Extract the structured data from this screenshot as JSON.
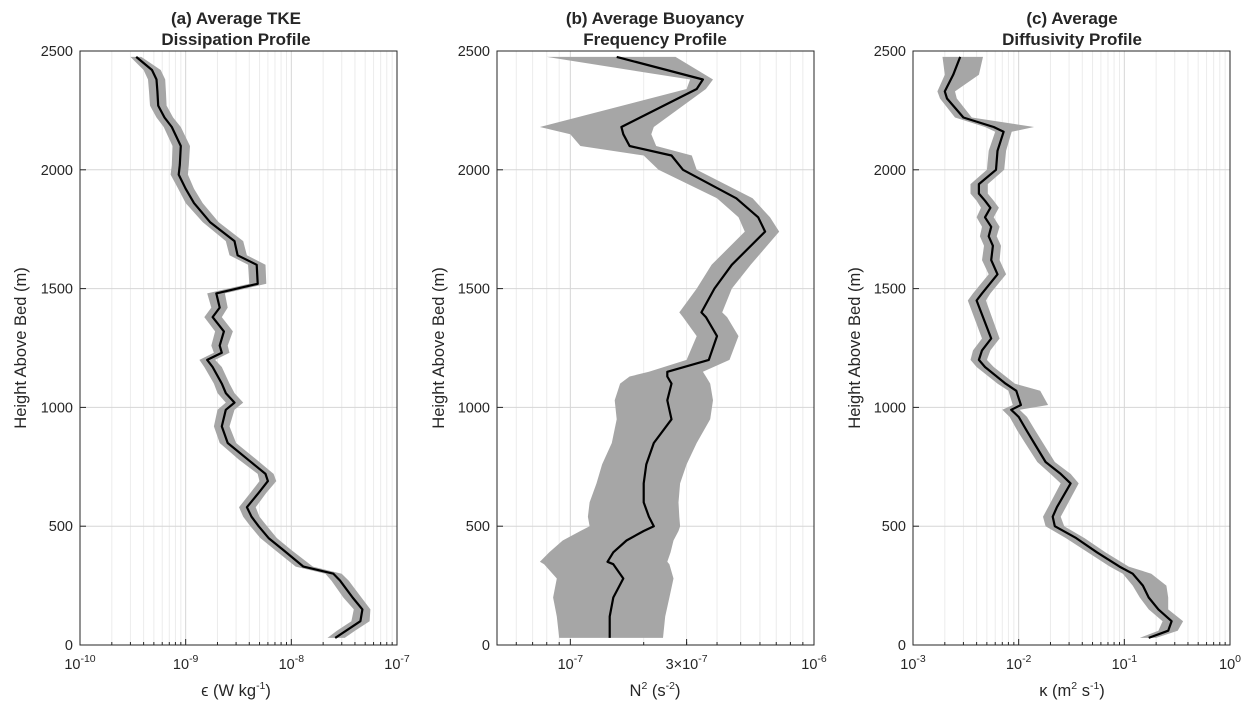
{
  "chart_data": [
    {
      "type": "line",
      "title_lines": [
        "(a) Average TKE",
        "Dissipation Profile"
      ],
      "xlabel": "ϵ (W kg⁻¹)",
      "ylabel": "Height Above Bed (m)",
      "xscale": "log",
      "xlim": [
        1e-10,
        1e-07
      ],
      "ylim": [
        0,
        2500
      ],
      "yticks": [
        0,
        500,
        1000,
        1500,
        2000,
        2500
      ],
      "xtick_labels": [
        {
          "value": 1e-10,
          "base": "10",
          "exp": "-10"
        },
        {
          "value": 1e-09,
          "base": "10",
          "exp": "-9"
        },
        {
          "value": 1e-08,
          "base": "10",
          "exp": "-8"
        },
        {
          "value": 1e-07,
          "base": "10",
          "exp": "-7"
        }
      ],
      "grid": true,
      "line_color": "#000000",
      "band_color": "#a6a6a6",
      "series": [
        {
          "x": [
            2.6e-08,
            3.3e-08,
            4.5e-08,
            4.7e-08,
            3.8e-08,
            2.9e-08,
            2.5e-08,
            1.3e-08,
            8.4e-09,
            6.1e-09,
            4.9e-09,
            4.2e-09,
            3.8e-09,
            4.9e-09,
            6e-09,
            5.7e-09,
            3.9e-09,
            2.5e-09,
            2.2e-09,
            2.4e-09,
            2.9e-09,
            2.4e-09,
            2.2e-09,
            1.8e-09,
            1.6e-09,
            2.2e-09,
            2.1e-09,
            2.3e-09,
            1.8e-09,
            2.1e-09,
            1.95e-09,
            4.8e-09,
            4.7e-09,
            3.1e-09,
            2.9e-09,
            1.7e-09,
            1.2e-09,
            1e-09,
            8.6e-10,
            8.8e-10,
            9e-10,
            7.4e-10,
            6.3e-10,
            5.5e-10,
            5.4e-10,
            5.3e-10,
            4.8e-10,
            3.4e-10
          ],
          "y": [
            30,
            60,
            100,
            150,
            200,
            270,
            300,
            330,
            400,
            450,
            500,
            540,
            580,
            640,
            690,
            720,
            780,
            850,
            920,
            990,
            1020,
            1060,
            1100,
            1170,
            1200,
            1230,
            1260,
            1320,
            1380,
            1420,
            1480,
            1520,
            1600,
            1640,
            1700,
            1780,
            1860,
            1920,
            1980,
            2020,
            2100,
            2180,
            2220,
            2270,
            2330,
            2380,
            2420,
            2475
          ],
          "lower": [
            2.2e-08,
            2.7e-08,
            3.7e-08,
            3.9e-08,
            3.1e-08,
            2.4e-08,
            2.1e-08,
            1.1e-08,
            7e-09,
            5.1e-09,
            4.1e-09,
            3.5e-09,
            3.2e-09,
            4.1e-09,
            5e-09,
            4.8e-09,
            3.2e-09,
            2.1e-09,
            1.85e-09,
            2e-09,
            2.4e-09,
            2e-09,
            1.85e-09,
            1.5e-09,
            1.35e-09,
            1.85e-09,
            1.75e-09,
            1.9e-09,
            1.5e-09,
            1.75e-09,
            1.6e-09,
            4e-09,
            3.9e-09,
            2.6e-09,
            2.4e-09,
            1.45e-09,
            1e-09,
            8.5e-10,
            7.2e-10,
            7.4e-10,
            7.5e-10,
            6.2e-10,
            5.3e-10,
            4.6e-10,
            4.5e-10,
            4.4e-10,
            4e-10,
            3e-10
          ],
          "upper": [
            3.2e-08,
            4e-08,
            5.5e-08,
            5.6e-08,
            4.6e-08,
            3.5e-08,
            3e-08,
            1.6e-08,
            1e-08,
            7.3e-09,
            5.9e-09,
            5e-09,
            4.6e-09,
            5.8e-09,
            7.2e-09,
            6.8e-09,
            4.7e-09,
            3e-09,
            2.6e-09,
            2.9e-09,
            3.5e-09,
            2.9e-09,
            2.6e-09,
            2.2e-09,
            1.9e-09,
            2.6e-09,
            2.5e-09,
            2.8e-09,
            2.2e-09,
            2.5e-09,
            2.35e-09,
            5.8e-09,
            5.7e-09,
            3.8e-09,
            3.5e-09,
            2.05e-09,
            1.45e-09,
            1.2e-09,
            1.05e-09,
            1.07e-09,
            1.1e-09,
            9e-10,
            7.6e-10,
            6.6e-10,
            6.5e-10,
            6.4e-10,
            5.8e-10,
            3.8e-10
          ]
        }
      ]
    },
    {
      "type": "line",
      "title_lines": [
        "(b) Average Buoyancy",
        "Frequency Profile"
      ],
      "xlabel": "N² (s⁻²)",
      "ylabel": "Height Above Bed (m)",
      "xscale": "log",
      "xlim": [
        5e-08,
        1e-06
      ],
      "ylim": [
        0,
        2500
      ],
      "yticks": [
        0,
        500,
        1000,
        1500,
        2000,
        2500
      ],
      "xtick_labels": [
        {
          "value": 1e-07,
          "base": "10",
          "exp": "-7"
        },
        {
          "value": 3e-07,
          "base": "3×10",
          "exp": "-7"
        },
        {
          "value": 1e-06,
          "base": "10",
          "exp": "-6"
        }
      ],
      "grid": true,
      "line_color": "#000000",
      "band_color": "#a6a6a6",
      "series": [
        {
          "x": [
            1.45e-07,
            1.45e-07,
            1.5e-07,
            1.65e-07,
            1.5e-07,
            1.42e-07,
            1.5e-07,
            1.7e-07,
            2e-07,
            2.2e-07,
            2.1e-07,
            2e-07,
            2e-07,
            2.05e-07,
            2.2e-07,
            2.6e-07,
            2.5e-07,
            2.6e-07,
            2.5e-07,
            2.5e-07,
            3.7e-07,
            4e-07,
            3.6e-07,
            3.45e-07,
            3.9e-07,
            4.6e-07,
            6.3e-07,
            5.9e-07,
            4.8e-07,
            2.9e-07,
            2.6e-07,
            1.75e-07,
            1.65e-07,
            1.62e-07,
            3.3e-07,
            3.5e-07,
            1.55e-07
          ],
          "y": [
            30,
            120,
            200,
            280,
            340,
            350,
            390,
            440,
            480,
            500,
            540,
            600,
            680,
            760,
            850,
            950,
            1030,
            1100,
            1130,
            1150,
            1200,
            1300,
            1380,
            1400,
            1500,
            1600,
            1740,
            1800,
            1880,
            2000,
            2060,
            2100,
            2150,
            2180,
            2340,
            2380,
            2475
          ],
          "lower": [
            9e-08,
            8.8e-08,
            8.5e-08,
            8.8e-08,
            7.8e-08,
            7.5e-08,
            8.2e-08,
            9.3e-08,
            1.1e-07,
            1.2e-07,
            1.18e-07,
            1.2e-07,
            1.28e-07,
            1.35e-07,
            1.48e-07,
            1.55e-07,
            1.52e-07,
            1.6e-07,
            1.75e-07,
            2.1e-07,
            3e-07,
            3.3e-07,
            2.9e-07,
            2.8e-07,
            3.3e-07,
            3.8e-07,
            5.2e-07,
            4.9e-07,
            4e-07,
            2.3e-07,
            2e-07,
            1.1e-07,
            1e-07,
            7.5e-08,
            3e-07,
            3.1e-07,
            8e-08
          ],
          "upper": [
            2.4e-07,
            2.45e-07,
            2.55e-07,
            2.65e-07,
            2.55e-07,
            2.5e-07,
            2.58e-07,
            2.65e-07,
            2.78e-07,
            2.82e-07,
            2.8e-07,
            2.78e-07,
            2.82e-07,
            3e-07,
            3.3e-07,
            3.75e-07,
            3.85e-07,
            3.75e-07,
            3.6e-07,
            3.5e-07,
            4.5e-07,
            4.9e-07,
            4.4e-07,
            4.2e-07,
            4.6e-07,
            5.5e-07,
            7.2e-07,
            6.6e-07,
            5.6e-07,
            3.3e-07,
            3.15e-07,
            2.25e-07,
            2.15e-07,
            2.2e-07,
            3.6e-07,
            3.85e-07,
            2.7e-07
          ]
        }
      ]
    },
    {
      "type": "line",
      "title_lines": [
        "(c) Average",
        "Diffusivity Profile"
      ],
      "xlabel": "κ (m² s⁻¹)",
      "ylabel": "Height Above Bed (m)",
      "xscale": "log",
      "xlim": [
        0.001,
        1
      ],
      "ylim": [
        0,
        2500
      ],
      "yticks": [
        0,
        500,
        1000,
        1500,
        2000,
        2500
      ],
      "xtick_labels": [
        {
          "value": 0.001,
          "base": "10",
          "exp": "-3"
        },
        {
          "value": 0.01,
          "base": "10",
          "exp": "-2"
        },
        {
          "value": 0.1,
          "base": "10",
          "exp": "-1"
        },
        {
          "value": 1,
          "base": "10",
          "exp": "0"
        }
      ],
      "grid": true,
      "line_color": "#000000",
      "band_color": "#a6a6a6",
      "series": [
        {
          "x": [
            0.17,
            0.26,
            0.28,
            0.21,
            0.17,
            0.15,
            0.12,
            0.09,
            0.055,
            0.035,
            0.022,
            0.021,
            0.023,
            0.031,
            0.025,
            0.018,
            0.014,
            0.012,
            0.01,
            0.0085,
            0.0105,
            0.0095,
            0.0075,
            0.0048,
            0.0042,
            0.0045,
            0.0055,
            0.004,
            0.0045,
            0.0063,
            0.0055,
            0.0057,
            0.0052,
            0.0055,
            0.0048,
            0.0054,
            0.0048,
            0.0042,
            0.0042,
            0.0061,
            0.0063,
            0.0072,
            0.0058,
            0.003,
            0.0021,
            0.002,
            0.0024,
            0.0028
          ],
          "y": [
            30,
            60,
            100,
            150,
            200,
            250,
            300,
            330,
            390,
            450,
            500,
            540,
            580,
            680,
            720,
            770,
            850,
            900,
            960,
            990,
            1010,
            1070,
            1100,
            1170,
            1200,
            1240,
            1290,
            1450,
            1480,
            1560,
            1620,
            1680,
            1720,
            1760,
            1800,
            1840,
            1870,
            1900,
            1940,
            2000,
            2080,
            2160,
            2180,
            2220,
            2300,
            2330,
            2400,
            2475
          ],
          "lower": [
            0.14,
            0.21,
            0.23,
            0.17,
            0.14,
            0.12,
            0.097,
            0.073,
            0.045,
            0.028,
            0.018,
            0.017,
            0.019,
            0.025,
            0.02,
            0.015,
            0.0115,
            0.0098,
            0.0082,
            0.007,
            0.0088,
            0.008,
            0.0063,
            0.004,
            0.0035,
            0.0037,
            0.0045,
            0.0033,
            0.0037,
            0.0052,
            0.0045,
            0.0047,
            0.0043,
            0.0045,
            0.004,
            0.0044,
            0.004,
            0.0035,
            0.0035,
            0.005,
            0.0052,
            0.006,
            0.0048,
            0.0025,
            0.0018,
            0.0017,
            0.002,
            0.0019
          ],
          "upper": [
            0.2,
            0.32,
            0.36,
            0.26,
            0.26,
            0.25,
            0.18,
            0.11,
            0.066,
            0.042,
            0.027,
            0.025,
            0.028,
            0.037,
            0.031,
            0.022,
            0.017,
            0.0145,
            0.012,
            0.0102,
            0.019,
            0.016,
            0.0092,
            0.0058,
            0.005,
            0.0054,
            0.0066,
            0.0049,
            0.0054,
            0.0076,
            0.0066,
            0.0068,
            0.0062,
            0.0066,
            0.0058,
            0.0065,
            0.0058,
            0.0051,
            0.0051,
            0.0073,
            0.0076,
            0.0086,
            0.014,
            0.0036,
            0.0026,
            0.0025,
            0.0042,
            0.0046
          ]
        }
      ]
    }
  ]
}
